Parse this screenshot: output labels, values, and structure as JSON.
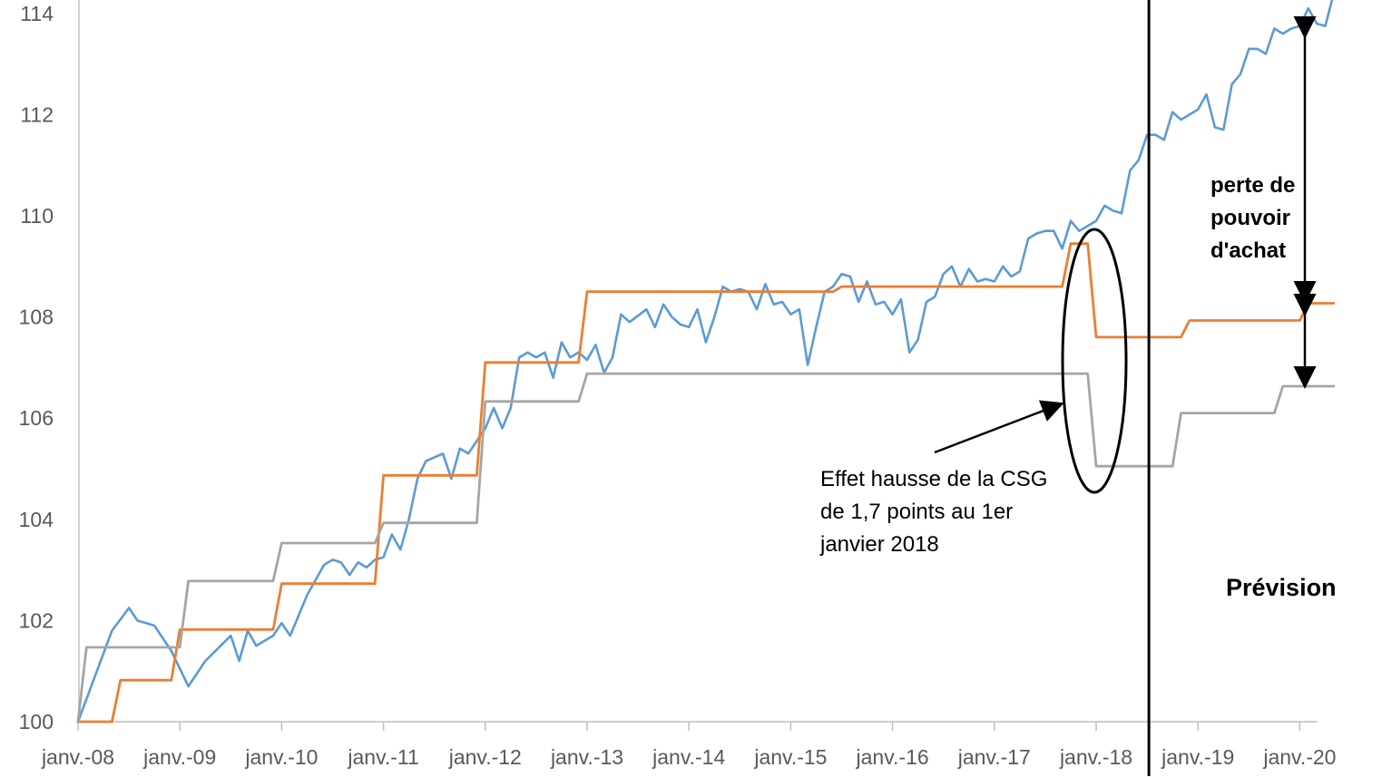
{
  "chart_data": {
    "type": "line",
    "title": "",
    "xlabel": "",
    "ylabel": "",
    "ylim": [
      100,
      114
    ],
    "y_ticks": [
      "100",
      "102",
      "104",
      "106",
      "108",
      "110",
      "112",
      "114"
    ],
    "x_ticks": [
      "janv.-08",
      "janv.-09",
      "janv.-10",
      "janv.-11",
      "janv.-12",
      "janv.-13",
      "janv.-14",
      "janv.-15",
      "janv.-16",
      "janv.-17",
      "janv.-18",
      "janv.-19",
      "janv.-20"
    ],
    "grid": false,
    "legend": "none",
    "series": [
      {
        "color": "#5B9BD5",
        "points": [
          [
            "janv.-08",
            100.0
          ],
          [
            "mai-08",
            101.8
          ],
          [
            "juil.-08",
            102.25
          ],
          [
            "août-08",
            102.0
          ],
          [
            "oct.-08",
            101.9
          ],
          [
            "déc.-08",
            101.4
          ],
          [
            "févr.-09",
            100.7
          ],
          [
            "avr.-09",
            101.2
          ],
          [
            "juil.-09",
            101.7
          ],
          [
            "août-09",
            101.2
          ],
          [
            "sept.-09",
            101.8
          ],
          [
            "oct.-09",
            101.5
          ],
          [
            "déc.-09",
            101.7
          ],
          [
            "janv.-10",
            101.95
          ],
          [
            "févr.-10",
            101.7
          ],
          [
            "avr.-10",
            102.5
          ],
          [
            "juin-10",
            103.1
          ],
          [
            "juil.-10",
            103.2
          ],
          [
            "août-10",
            103.15
          ],
          [
            "sept.-10",
            102.9
          ],
          [
            "oct.-10",
            103.15
          ],
          [
            "nov.-10",
            103.05
          ],
          [
            "déc.-10",
            103.2
          ],
          [
            "janv.-11",
            103.25
          ],
          [
            "févr.-11",
            103.7
          ],
          [
            "mars-11",
            103.4
          ],
          [
            "avr.-11",
            104.0
          ],
          [
            "mai-11",
            104.8
          ],
          [
            "juin-11",
            105.15
          ],
          [
            "août-11",
            105.3
          ],
          [
            "sept.-11",
            104.8
          ],
          [
            "oct.-11",
            105.4
          ],
          [
            "nov.-11",
            105.3
          ],
          [
            "janv.-12",
            105.8
          ],
          [
            "févr.-12",
            106.2
          ],
          [
            "mars-12",
            105.8
          ],
          [
            "avr.-12",
            106.2
          ],
          [
            "mai-12",
            107.2
          ],
          [
            "juin-12",
            107.3
          ],
          [
            "juil.-12",
            107.2
          ],
          [
            "août-12",
            107.3
          ],
          [
            "sept.-12",
            106.8
          ],
          [
            "oct.-12",
            107.5
          ],
          [
            "nov.-12",
            107.2
          ],
          [
            "déc.-12",
            107.3
          ],
          [
            "janv.-13",
            107.15
          ],
          [
            "févr.-13",
            107.45
          ],
          [
            "mars-13",
            106.9
          ],
          [
            "avr.-13",
            107.2
          ],
          [
            "mai-13",
            108.05
          ],
          [
            "juin-13",
            107.9
          ],
          [
            "août-13",
            108.15
          ],
          [
            "sept.-13",
            107.8
          ],
          [
            "oct.-13",
            108.25
          ],
          [
            "nov.-13",
            108.0
          ],
          [
            "déc.-13",
            107.85
          ],
          [
            "janv.-14",
            107.8
          ],
          [
            "févr.-14",
            108.15
          ],
          [
            "mars-14",
            107.5
          ],
          [
            "avr.-14",
            108.0
          ],
          [
            "mai-14",
            108.6
          ],
          [
            "juin-14",
            108.5
          ],
          [
            "juil.-14",
            108.55
          ],
          [
            "août-14",
            108.5
          ],
          [
            "sept.-14",
            108.15
          ],
          [
            "oct.-14",
            108.65
          ],
          [
            "nov.-14",
            108.25
          ],
          [
            "déc.-14",
            108.3
          ],
          [
            "janv.-15",
            108.05
          ],
          [
            "févr.-15",
            108.15
          ],
          [
            "mars-15",
            107.05
          ],
          [
            "avr.-15",
            107.8
          ],
          [
            "mai-15",
            108.5
          ],
          [
            "juin-15",
            108.6
          ],
          [
            "juil.-15",
            108.85
          ],
          [
            "août-15",
            108.8
          ],
          [
            "sept.-15",
            108.3
          ],
          [
            "oct.-15",
            108.7
          ],
          [
            "nov.-15",
            108.25
          ],
          [
            "déc.-15",
            108.3
          ],
          [
            "janv.-16",
            108.05
          ],
          [
            "févr.-16",
            108.35
          ],
          [
            "mars-16",
            107.3
          ],
          [
            "avr.-16",
            107.55
          ],
          [
            "mai-16",
            108.3
          ],
          [
            "juin-16",
            108.4
          ],
          [
            "juil.-16",
            108.85
          ],
          [
            "août-16",
            109.0
          ],
          [
            "sept.-16",
            108.6
          ],
          [
            "oct.-16",
            108.95
          ],
          [
            "nov.-16",
            108.7
          ],
          [
            "déc.-16",
            108.75
          ],
          [
            "janv.-17",
            108.7
          ],
          [
            "févr.-17",
            109.0
          ],
          [
            "mars-17",
            108.8
          ],
          [
            "avr.-17",
            108.9
          ],
          [
            "mai-17",
            109.55
          ],
          [
            "juin-17",
            109.65
          ],
          [
            "juil.-17",
            109.7
          ],
          [
            "août-17",
            109.7
          ],
          [
            "sept.-17",
            109.35
          ],
          [
            "oct.-17",
            109.9
          ],
          [
            "nov.-17",
            109.7
          ],
          [
            "déc.-17",
            109.8
          ],
          [
            "janv.-18",
            109.9
          ],
          [
            "févr.-18",
            110.2
          ],
          [
            "mars-18",
            110.1
          ],
          [
            "avr.-18",
            110.05
          ],
          [
            "mai-18",
            110.9
          ],
          [
            "juin-18",
            111.1
          ],
          [
            "juil.-18",
            111.6
          ],
          [
            "août-18",
            111.6
          ],
          [
            "sept.-18",
            111.5
          ],
          [
            "oct.-18",
            112.05
          ],
          [
            "nov.-18",
            111.9
          ],
          [
            "déc.-18",
            112.0
          ],
          [
            "janv.-19",
            112.1
          ],
          [
            "févr.-19",
            112.4
          ],
          [
            "mars-19",
            111.75
          ],
          [
            "avr.-19",
            111.7
          ],
          [
            "mai-19",
            112.6
          ],
          [
            "juin-19",
            112.8
          ],
          [
            "juil.-19",
            113.3
          ],
          [
            "août-19",
            113.3
          ],
          [
            "sept.-19",
            113.2
          ],
          [
            "oct.-19",
            113.7
          ],
          [
            "nov.-19",
            113.6
          ],
          [
            "déc.-19",
            113.7
          ],
          [
            "janv.-20",
            113.75
          ],
          [
            "févr.-20",
            114.1
          ],
          [
            "mars-20",
            113.8
          ],
          [
            "avr.-20",
            113.75
          ],
          [
            "mai-20",
            114.4
          ]
        ]
      },
      {
        "color": "#ED7D31",
        "steps": [
          [
            "janv.-08",
            100.0
          ],
          [
            "juin-08",
            100.82
          ],
          [
            "janv.-09",
            101.82
          ],
          [
            "janv.-10",
            102.73
          ],
          [
            "janv.-11",
            104.87
          ],
          [
            "janv.-12",
            107.1
          ],
          [
            "janv.-13",
            108.5
          ],
          [
            "juil.-15",
            108.6
          ],
          [
            "oct.-17",
            109.45
          ],
          [
            "janv.-18",
            107.6
          ],
          [
            "oct.-18",
            107.6
          ],
          [
            "déc.-18",
            107.93
          ],
          [
            "janv.-20",
            107.93
          ],
          [
            "févr.-20",
            108.27
          ],
          [
            "mai-20",
            108.27
          ]
        ]
      },
      {
        "color": "#A5A5A5",
        "steps": [
          [
            "janv.-08",
            100.0
          ],
          [
            "févr.-08",
            101.47
          ],
          [
            "déc.-08",
            101.47
          ],
          [
            "févr.-09",
            102.78
          ],
          [
            "janv.-10",
            103.53
          ],
          [
            "janv.-11",
            103.93
          ],
          [
            "janv.-12",
            106.33
          ],
          [
            "janv.-13",
            106.88
          ],
          [
            "nov.-17",
            106.88
          ],
          [
            "janv.-18",
            105.05
          ],
          [
            "nov.-18",
            106.1
          ],
          [
            "nov.-19",
            106.63
          ],
          [
            "mai-20",
            106.63
          ]
        ]
      }
    ],
    "annotations": {
      "csg_note": [
        "Effet hausse de la CSG",
        "de 1,7 points au 1er",
        "janvier 2018"
      ],
      "loss_note": [
        "perte de",
        "pouvoir",
        "d'achat"
      ],
      "forecast_label": "Prévision"
    }
  }
}
